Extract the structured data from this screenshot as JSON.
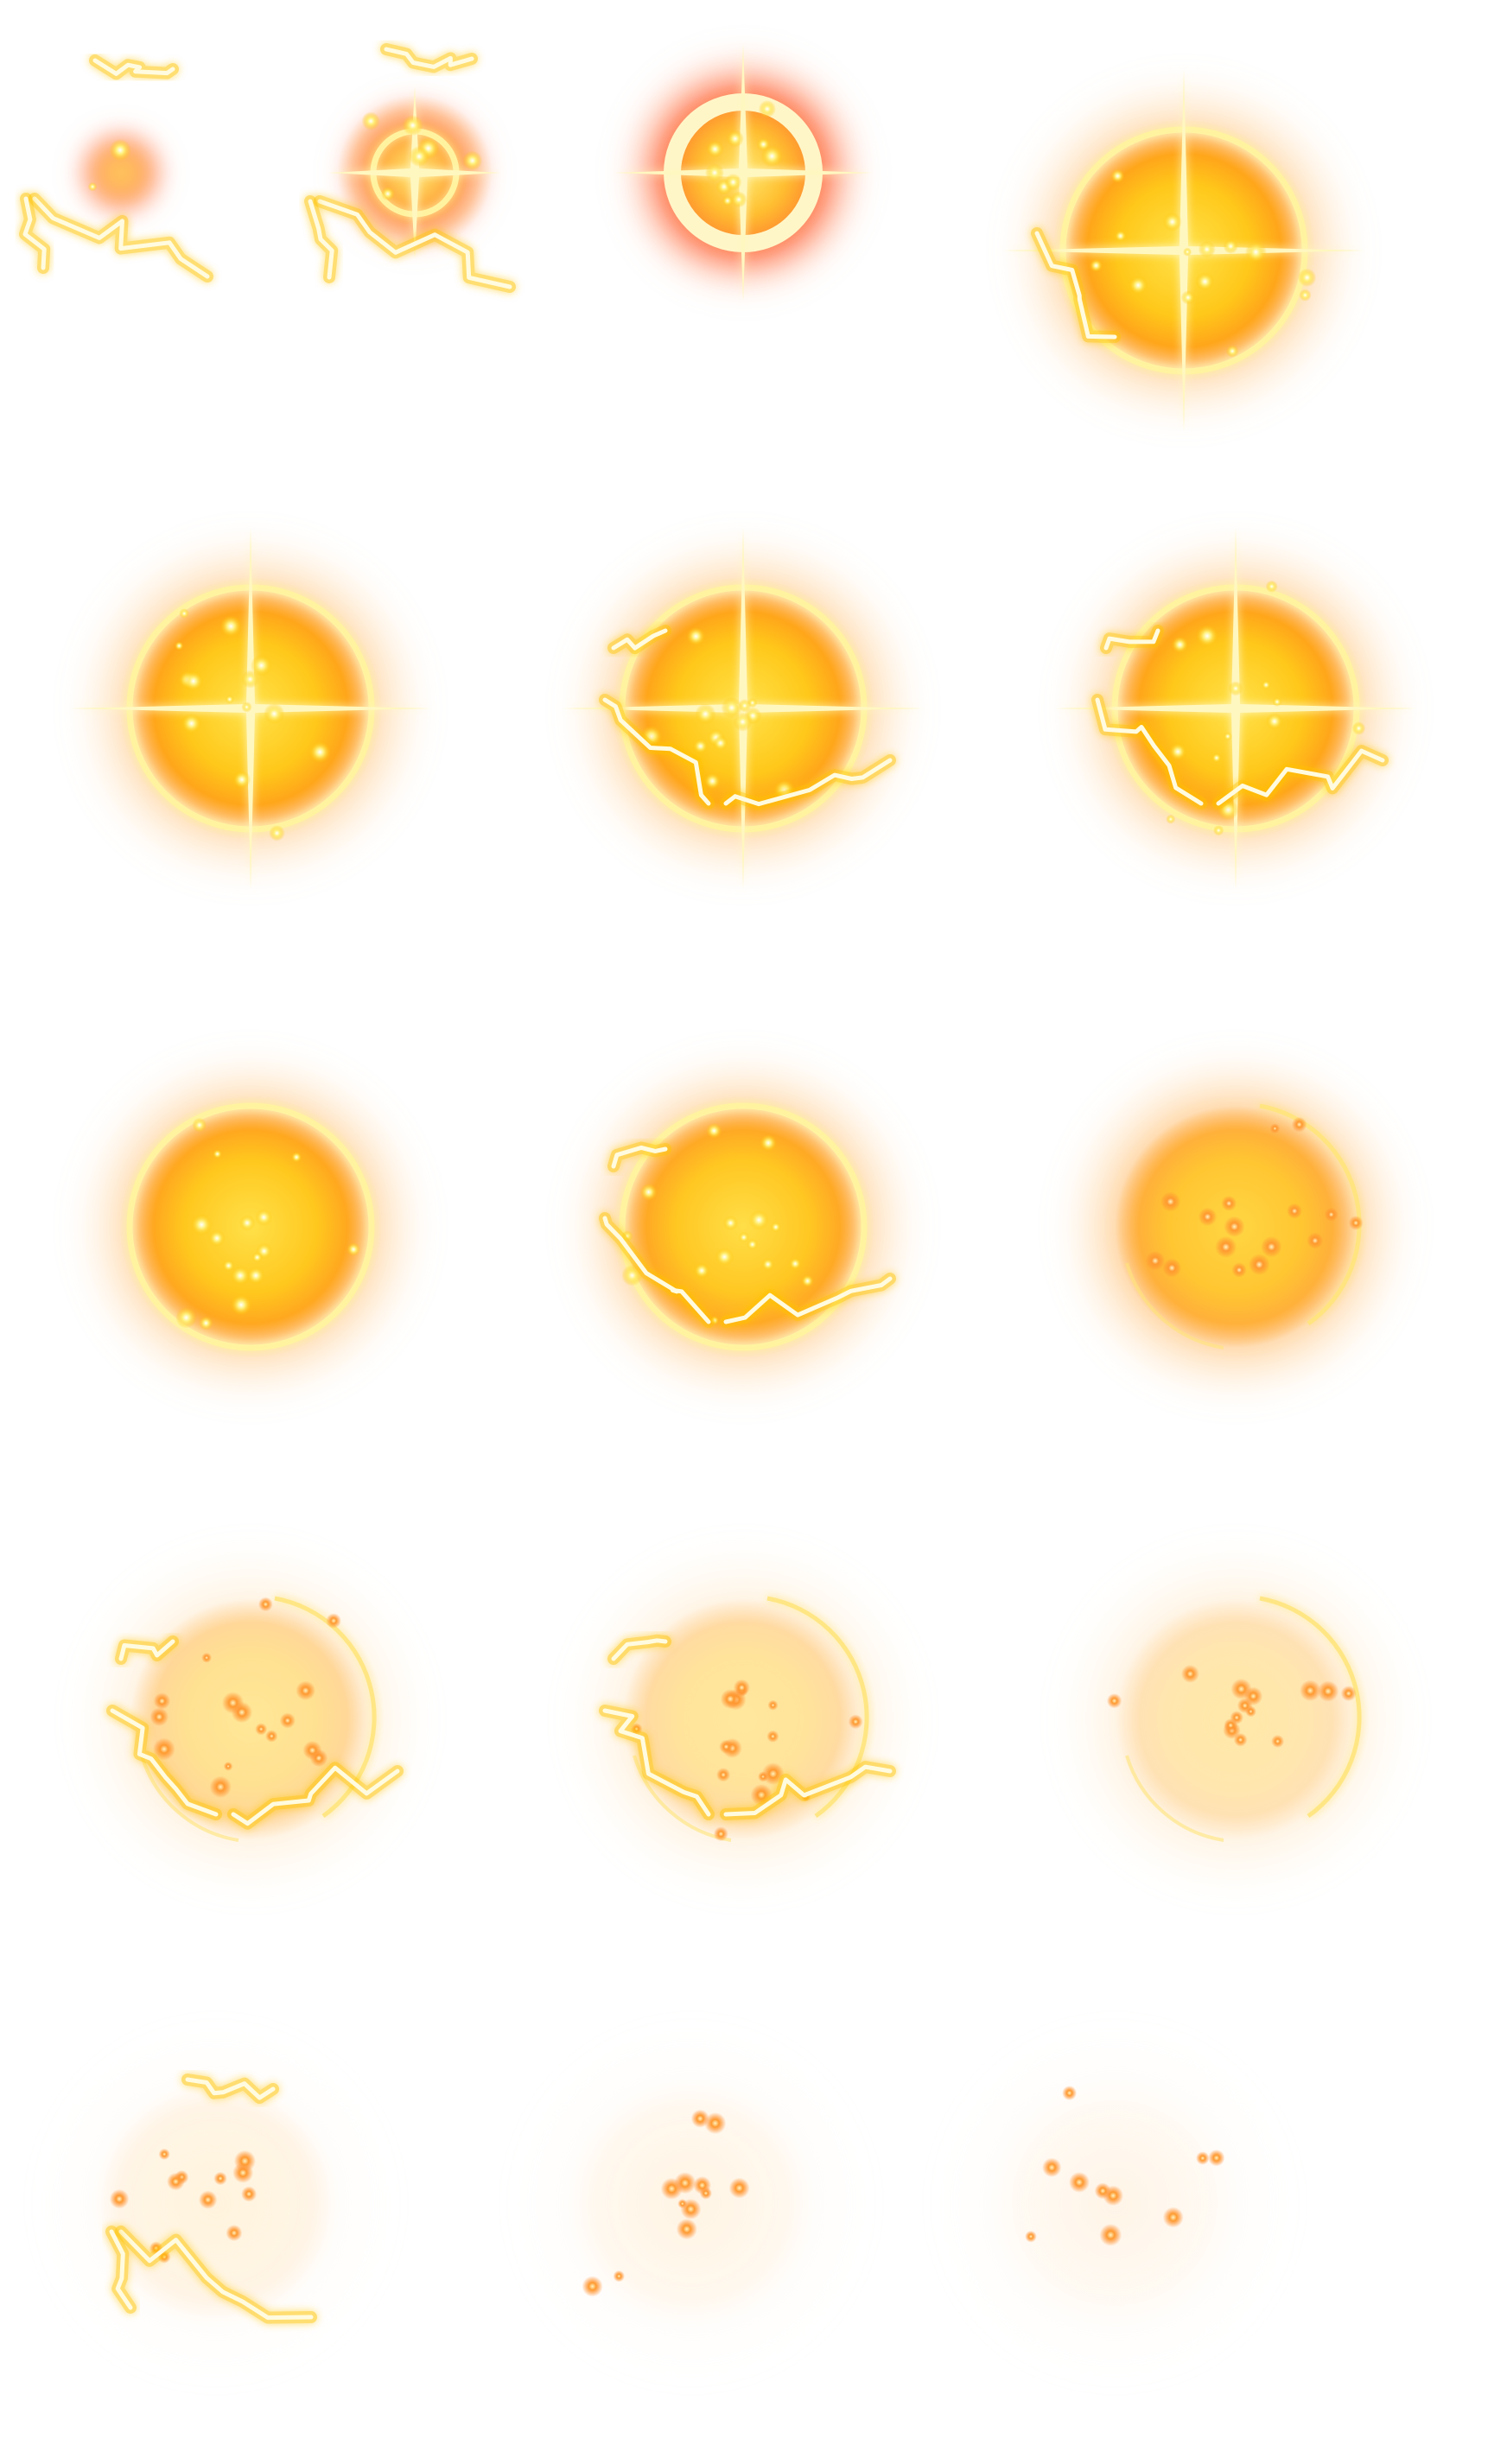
{
  "sprite_sheet": {
    "frame_count": 17,
    "layout_rows": [
      4,
      3,
      3,
      3,
      3
    ],
    "colors": {
      "background": "#ffffff",
      "core": "#fff7b0",
      "glow_yellow": "#ffd21a",
      "glow_orange": "#ff9a1a",
      "glow_red": "#ff3a14",
      "lightning": "#fffbe0",
      "lightning_glow": "#ffc400",
      "spark": "#ffe57a",
      "ember": "#ff8a30"
    },
    "frames": [
      {
        "id": 1,
        "phase": "ignite",
        "sphere": 0.0,
        "halo": "red",
        "ring": false,
        "flare": false,
        "lightning": "both",
        "sparks": 2,
        "ember": false
      },
      {
        "id": 2,
        "phase": "spark",
        "sphere": 0.2,
        "halo": "red",
        "ring": "thin",
        "flare": true,
        "lightning": "both",
        "sparks": 6,
        "ember": false
      },
      {
        "id": 3,
        "phase": "flash-ring",
        "sphere": 0.45,
        "halo": "red",
        "ring": "thick",
        "flare": true,
        "lightning": "none",
        "sparks": 10,
        "ember": false
      },
      {
        "id": 4,
        "phase": "expand",
        "sphere": 1.0,
        "halo": "orange",
        "ring": "thin",
        "flare": true,
        "lightning": "left",
        "sparks": 14,
        "ember": false
      },
      {
        "id": 5,
        "phase": "full",
        "sphere": 1.0,
        "halo": "orange",
        "ring": "thin",
        "flare": true,
        "lightning": "none",
        "sparks": 14,
        "ember": false
      },
      {
        "id": 6,
        "phase": "full",
        "sphere": 1.0,
        "halo": "orange",
        "ring": "thin",
        "flare": true,
        "lightning": "cross",
        "sparks": 14,
        "ember": false
      },
      {
        "id": 7,
        "phase": "full",
        "sphere": 1.0,
        "halo": "orange",
        "ring": "thin",
        "flare": true,
        "lightning": "cross",
        "sparks": 14,
        "ember": false
      },
      {
        "id": 8,
        "phase": "sustain",
        "sphere": 0.95,
        "halo": "orange",
        "ring": "thin",
        "flare": false,
        "lightning": "none",
        "sparks": 16,
        "ember": false
      },
      {
        "id": 9,
        "phase": "sustain",
        "sphere": 0.9,
        "halo": "orange",
        "ring": "thin",
        "flare": false,
        "lightning": "cross",
        "sparks": 16,
        "ember": false
      },
      {
        "id": 10,
        "phase": "fade",
        "sphere": 0.7,
        "halo": "orange",
        "ring": "arc",
        "flare": false,
        "lightning": "none",
        "sparks": 16,
        "ember": true
      },
      {
        "id": 11,
        "phase": "dissipate",
        "sphere": 0.35,
        "halo": "pale",
        "ring": "arc",
        "flare": false,
        "lightning": "cross",
        "sparks": 16,
        "ember": true
      },
      {
        "id": 12,
        "phase": "dissipate",
        "sphere": 0.3,
        "halo": "pale",
        "ring": "arc",
        "flare": false,
        "lightning": "cross",
        "sparks": 16,
        "ember": true
      },
      {
        "id": 13,
        "phase": "dissipate",
        "sphere": 0.2,
        "halo": "pale",
        "ring": "arc",
        "flare": false,
        "lightning": "none",
        "sparks": 14,
        "ember": true
      },
      {
        "id": 14,
        "phase": "residue",
        "sphere": 0.08,
        "halo": "faint",
        "ring": false,
        "flare": false,
        "lightning": "both",
        "sparks": 12,
        "ember": true
      },
      {
        "id": 15,
        "phase": "residue",
        "sphere": 0.04,
        "halo": "faint",
        "ring": false,
        "flare": false,
        "lightning": "none",
        "sparks": 12,
        "ember": true
      },
      {
        "id": 16,
        "phase": "residue",
        "sphere": 0.02,
        "halo": "faint",
        "ring": false,
        "flare": false,
        "lightning": "none",
        "sparks": 10,
        "ember": true
      },
      {
        "id": 17,
        "phase": "empty",
        "sphere": 0.0,
        "halo": "none",
        "ring": false,
        "flare": false,
        "lightning": "none",
        "sparks": 0,
        "ember": false
      }
    ]
  }
}
